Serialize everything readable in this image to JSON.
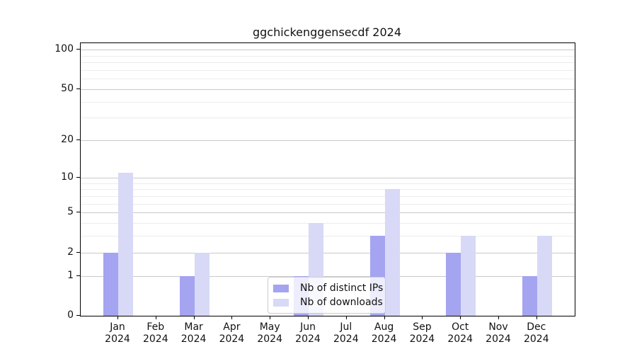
{
  "title": "ggchickenggensecdf 2024",
  "chart_data": {
    "type": "bar",
    "categories": [
      "Jan",
      "Feb",
      "Mar",
      "Apr",
      "May",
      "Jun",
      "Jul",
      "Aug",
      "Sep",
      "Oct",
      "Nov",
      "Dec"
    ],
    "year": "2024",
    "series": [
      {
        "name": "Nb of distinct IPs",
        "color": "#a4a4f0",
        "values": [
          2,
          0,
          1,
          0,
          0,
          1,
          0,
          3,
          0,
          2,
          0,
          1
        ]
      },
      {
        "name": "Nb of downloads",
        "color": "#d8d8f7",
        "values": [
          11,
          0,
          2,
          0,
          0,
          4,
          0,
          8,
          0,
          3,
          0,
          3
        ]
      }
    ],
    "y_axis": {
      "scale": "log1p",
      "major_ticks": [
        0,
        1,
        2,
        5,
        10,
        20,
        50,
        100
      ],
      "minor_gridlines": [
        3,
        4,
        6,
        7,
        8,
        9,
        30,
        40,
        60,
        70,
        80,
        90
      ],
      "ylim": [
        0,
        112
      ]
    },
    "x_axis": {
      "tick_label_lines": 2
    },
    "legend": {
      "position": "lower-center"
    },
    "grid": true
  }
}
